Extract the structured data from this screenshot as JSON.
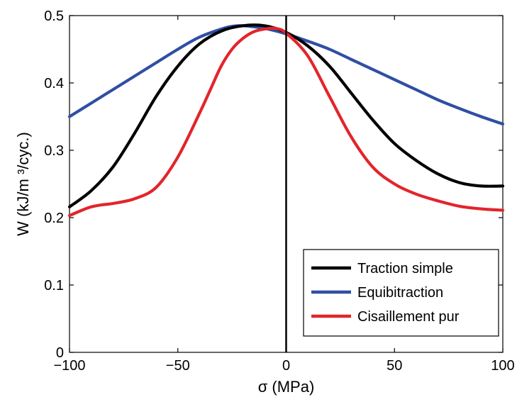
{
  "chart_data": {
    "type": "line",
    "title": "",
    "xlabel": "σ (MPa)",
    "ylabel": "W (kJ/m ³/cyc.)",
    "xlim": [
      -100,
      100
    ],
    "ylim": [
      0,
      0.5
    ],
    "xticks": [
      -100,
      -50,
      0,
      50,
      100
    ],
    "xtick_labels": [
      "−100",
      "−50",
      "0",
      "50",
      "100"
    ],
    "yticks": [
      0,
      0.1,
      0.2,
      0.3,
      0.4,
      0.5
    ],
    "ytick_labels": [
      "0",
      "0.1",
      "0.2",
      "0.3",
      "0.4",
      "0.5"
    ],
    "grid": false,
    "legend_position": "bottom-right",
    "vertical_line_x": 0,
    "series": [
      {
        "name": "Traction simple",
        "color": "#000000",
        "x": [
          -100,
          -90,
          -80,
          -70,
          -60,
          -50,
          -40,
          -30,
          -20,
          -10,
          0,
          10,
          20,
          30,
          40,
          50,
          60,
          70,
          80,
          90,
          100
        ],
        "y": [
          0.216,
          0.24,
          0.275,
          0.325,
          0.38,
          0.425,
          0.458,
          0.477,
          0.485,
          0.485,
          0.475,
          0.455,
          0.425,
          0.385,
          0.345,
          0.31,
          0.285,
          0.265,
          0.252,
          0.247,
          0.247
        ]
      },
      {
        "name": "Equibitraction",
        "color": "#2f4fa3",
        "x": [
          -100,
          -90,
          -80,
          -70,
          -60,
          -50,
          -40,
          -30,
          -25,
          -20,
          -10,
          0,
          10,
          20,
          30,
          40,
          50,
          60,
          70,
          80,
          90,
          100
        ],
        "y": [
          0.35,
          0.37,
          0.39,
          0.41,
          0.43,
          0.45,
          0.468,
          0.48,
          0.484,
          0.485,
          0.481,
          0.473,
          0.462,
          0.45,
          0.435,
          0.42,
          0.405,
          0.39,
          0.375,
          0.362,
          0.35,
          0.339
        ]
      },
      {
        "name": "Cisaillement pur",
        "color": "#e2252b",
        "x": [
          -100,
          -95,
          -90,
          -85,
          -80,
          -70,
          -60,
          -50,
          -40,
          -35,
          -30,
          -25,
          -20,
          -15,
          -10,
          -5,
          0,
          10,
          20,
          30,
          40,
          50,
          60,
          70,
          80,
          90,
          100
        ],
        "y": [
          0.203,
          0.21,
          0.216,
          0.219,
          0.221,
          0.228,
          0.245,
          0.29,
          0.355,
          0.39,
          0.425,
          0.45,
          0.466,
          0.476,
          0.48,
          0.481,
          0.474,
          0.44,
          0.38,
          0.32,
          0.275,
          0.25,
          0.235,
          0.225,
          0.217,
          0.213,
          0.211
        ]
      }
    ]
  }
}
